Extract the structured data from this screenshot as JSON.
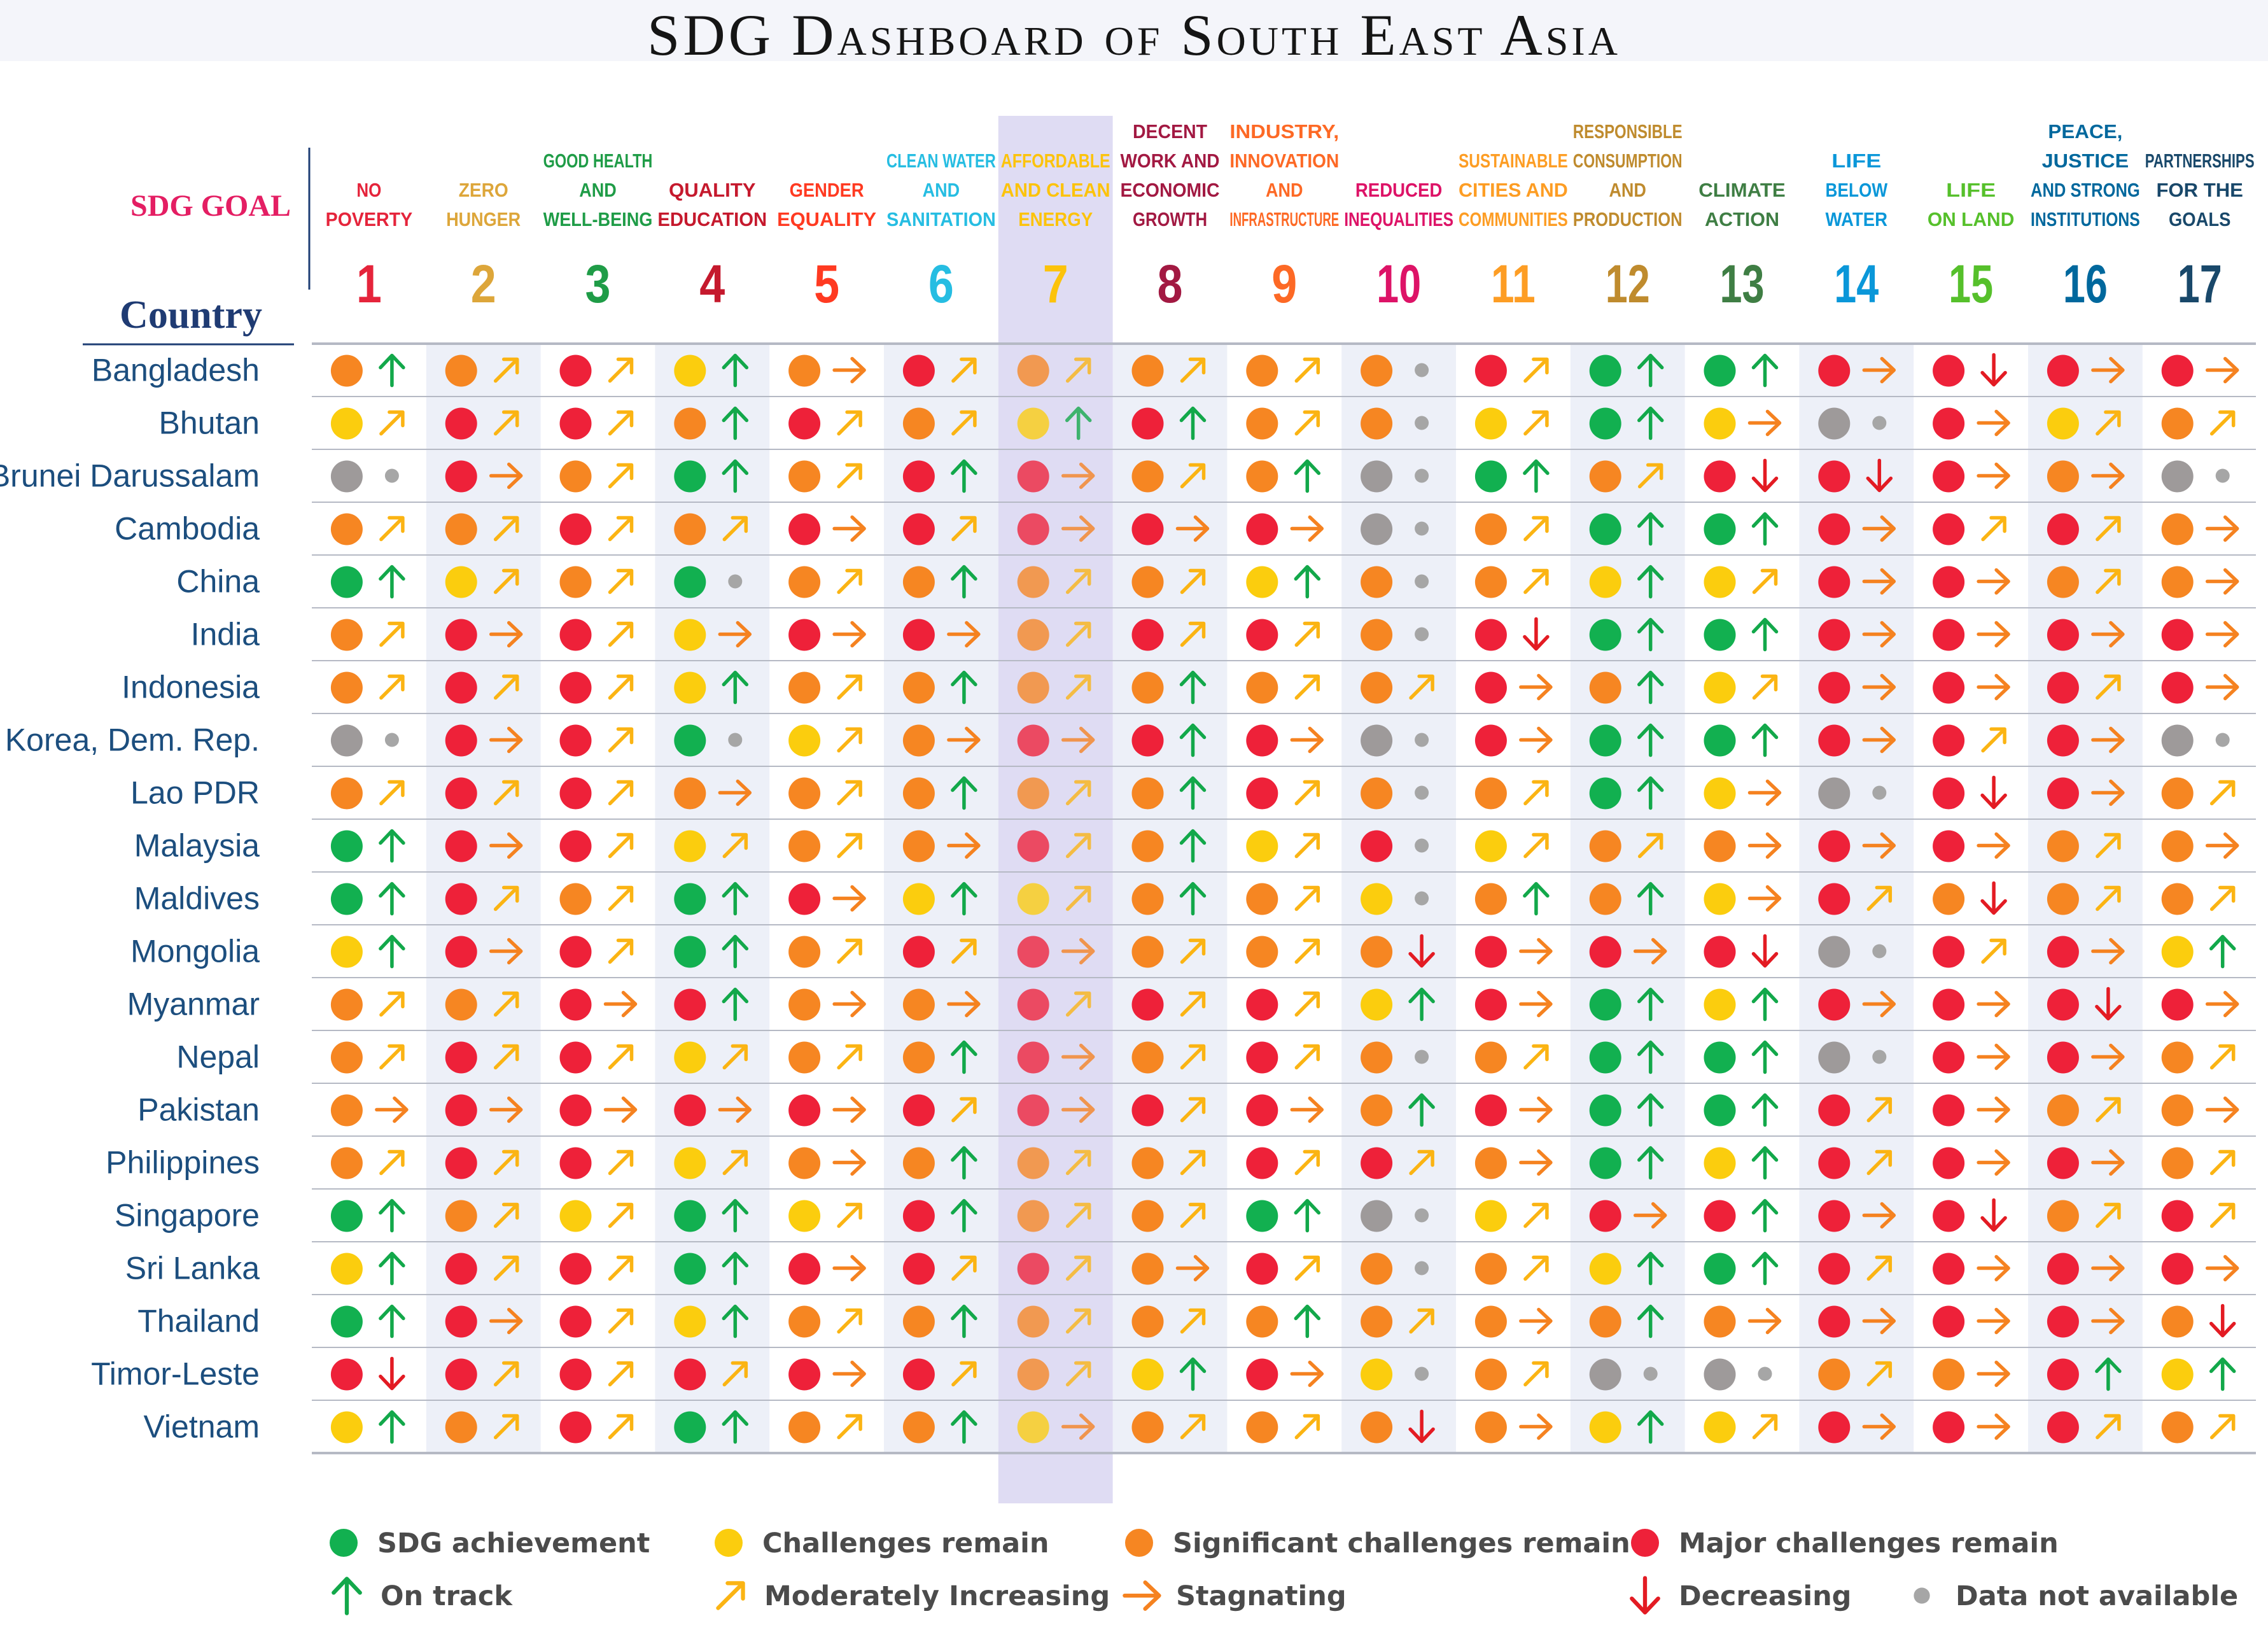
{
  "title": "SDG Dashboard of South East Asia",
  "chart_data": {
    "type": "table",
    "title": "SDG Dashboard of South East Asia",
    "row_header": "Country",
    "column_header": "SDG GOAL",
    "highlighted_goal": 7,
    "goals": [
      {
        "number": "1",
        "lines": [
          "NO",
          "POVERTY"
        ],
        "color": "#e5243b"
      },
      {
        "number": "2",
        "lines": [
          "ZERO",
          "HUNGER"
        ],
        "color": "#dda63a"
      },
      {
        "number": "3",
        "lines": [
          "GOOD HEALTH",
          "AND",
          "WELL-BEING"
        ],
        "color": "#1f9c47"
      },
      {
        "number": "4",
        "lines": [
          "QUALITY",
          "EDUCATION"
        ],
        "color": "#c5192d"
      },
      {
        "number": "5",
        "lines": [
          "GENDER",
          "EQUALITY"
        ],
        "color": "#ff3a21"
      },
      {
        "number": "6",
        "lines": [
          "CLEAN WATER",
          "AND",
          "SANITATION"
        ],
        "color": "#26bde2"
      },
      {
        "number": "7",
        "lines": [
          "AFFORDABLE",
          "AND CLEAN",
          "ENERGY"
        ],
        "color": "#fcc30b"
      },
      {
        "number": "8",
        "lines": [
          "DECENT",
          "WORK AND",
          "ECONOMIC",
          "GROWTH"
        ],
        "color": "#a21942"
      },
      {
        "number": "9",
        "lines": [
          "INDUSTRY,",
          "INNOVATION",
          "AND",
          "INFRASTRUCTURE"
        ],
        "color": "#fd6925"
      },
      {
        "number": "10",
        "lines": [
          "REDUCED",
          "INEQUALITIES"
        ],
        "color": "#dd1367"
      },
      {
        "number": "11",
        "lines": [
          "SUSTAINABLE",
          "CITIES AND",
          "COMMUNITIES"
        ],
        "color": "#fd9d24"
      },
      {
        "number": "12",
        "lines": [
          "RESPONSIBLE",
          "CONSUMPTION",
          "AND",
          "PRODUCTION"
        ],
        "color": "#bf8b2e"
      },
      {
        "number": "13",
        "lines": [
          "CLIMATE",
          "ACTION"
        ],
        "color": "#3f7e44"
      },
      {
        "number": "14",
        "lines": [
          "LIFE",
          "BELOW",
          "WATER"
        ],
        "color": "#0a97d9"
      },
      {
        "number": "15",
        "lines": [
          "LIFE",
          "ON LAND"
        ],
        "color": "#56c02b"
      },
      {
        "number": "16",
        "lines": [
          "PEACE,",
          "JUSTICE",
          "AND STRONG",
          "INSTITUTIONS"
        ],
        "color": "#00689d"
      },
      {
        "number": "17",
        "lines": [
          "PARTNERSHIPS",
          "FOR THE",
          "GOALS"
        ],
        "color": "#19486a"
      }
    ],
    "status_colors": {
      "G": "#12b050",
      "Y": "#fbcd0e",
      "O": "#f68622",
      "R": "#ee2139",
      "N": "#9e9a9a"
    },
    "trend_colors": {
      "up": "#12a84a",
      "mod": "#fbb413",
      "flat": "#f58220",
      "down": "#e31b23",
      "na": "#a6a6a6"
    },
    "countries": [
      {
        "name": "Bangladesh",
        "cells": [
          "O↑",
          "O↗",
          "R↗",
          "Y↑",
          "O→",
          "R↗",
          "O↗",
          "O↗",
          "O↗",
          "O•",
          "R↗",
          "G↑",
          "G↑",
          "R→",
          "R↓",
          "R→",
          "R→"
        ]
      },
      {
        "name": "Bhutan",
        "cells": [
          "Y↗",
          "R↗",
          "R↗",
          "O↑",
          "R↗",
          "O↗",
          "Y↑",
          "R↑",
          "O↗",
          "O•",
          "Y↗",
          "G↑",
          "Y→",
          "N•",
          "R→",
          "Y↗",
          "O↗"
        ]
      },
      {
        "name": "Brunei Darussalam",
        "cells": [
          "N•",
          "R→",
          "O↗",
          "G↑",
          "O↗",
          "R↑",
          "R→",
          "O↗",
          "O↑",
          "N•",
          "G↑",
          "O↗",
          "R↓",
          "R↓",
          "R→",
          "O→",
          "N•"
        ]
      },
      {
        "name": "Cambodia",
        "cells": [
          "O↗",
          "O↗",
          "R↗",
          "O↗",
          "R→",
          "R↗",
          "R→",
          "R→",
          "R→",
          "N•",
          "O↗",
          "G↑",
          "G↑",
          "R→",
          "R↗",
          "R↗",
          "O→"
        ]
      },
      {
        "name": "China",
        "cells": [
          "G↑",
          "Y↗",
          "O↗",
          "G•",
          "O↗",
          "O↑",
          "O↗",
          "O↗",
          "Y↑",
          "O•",
          "O↗",
          "Y↑",
          "Y↗",
          "R→",
          "R→",
          "O↗",
          "O→"
        ]
      },
      {
        "name": "India",
        "cells": [
          "O↗",
          "R→",
          "R↗",
          "Y→",
          "R→",
          "R→",
          "O↗",
          "R↗",
          "R↗",
          "O•",
          "R↓",
          "G↑",
          "G↑",
          "R→",
          "R→",
          "R→",
          "R→"
        ]
      },
      {
        "name": "Indonesia",
        "cells": [
          "O↗",
          "R↗",
          "R↗",
          "Y↑",
          "O↗",
          "O↑",
          "O↗",
          "O↑",
          "O↗",
          "O↗",
          "R→",
          "O↑",
          "Y↗",
          "R→",
          "R→",
          "R↗",
          "R→"
        ]
      },
      {
        "name": "Korea, Dem. Rep.",
        "cells": [
          "N•",
          "R→",
          "R↗",
          "G•",
          "Y↗",
          "O→",
          "R→",
          "R↑",
          "R→",
          "N•",
          "R→",
          "G↑",
          "G↑",
          "R→",
          "R↗",
          "R→",
          "N•"
        ]
      },
      {
        "name": "Lao PDR",
        "cells": [
          "O↗",
          "R↗",
          "R↗",
          "O→",
          "O↗",
          "O↑",
          "O↗",
          "O↑",
          "R↗",
          "O•",
          "O↗",
          "G↑",
          "Y→",
          "N•",
          "R↓",
          "R→",
          "O↗"
        ]
      },
      {
        "name": "Malaysia",
        "cells": [
          "G↑",
          "R→",
          "R↗",
          "Y↗",
          "O↗",
          "O→",
          "R↗",
          "O↑",
          "Y↗",
          "R•",
          "Y↗",
          "O↗",
          "O→",
          "R→",
          "R→",
          "O↗",
          "O→"
        ]
      },
      {
        "name": "Maldives",
        "cells": [
          "G↑",
          "R↗",
          "O↗",
          "G↑",
          "R→",
          "Y↑",
          "Y↗",
          "O↑",
          "O↗",
          "Y•",
          "O↑",
          "O↑",
          "Y→",
          "R↗",
          "O↓",
          "O↗",
          "O↗"
        ]
      },
      {
        "name": "Mongolia",
        "cells": [
          "Y↑",
          "R→",
          "R↗",
          "G↑",
          "O↗",
          "R↗",
          "R→",
          "O↗",
          "O↗",
          "O↓",
          "R→",
          "R→",
          "R↓",
          "N•",
          "R↗",
          "R→",
          "Y↑"
        ]
      },
      {
        "name": "Myanmar",
        "cells": [
          "O↗",
          "O↗",
          "R→",
          "R↑",
          "O→",
          "O→",
          "R↗",
          "R↗",
          "R↗",
          "Y↑",
          "R→",
          "G↑",
          "Y↑",
          "R→",
          "R→",
          "R↓",
          "R→"
        ]
      },
      {
        "name": "Nepal",
        "cells": [
          "O↗",
          "R↗",
          "R↗",
          "Y↗",
          "O↗",
          "O↑",
          "R→",
          "O↗",
          "R↗",
          "O•",
          "O↗",
          "G↑",
          "G↑",
          "N•",
          "R→",
          "R→",
          "O↗"
        ]
      },
      {
        "name": "Pakistan",
        "cells": [
          "O→",
          "R→",
          "R→",
          "R→",
          "R→",
          "R↗",
          "R→",
          "R↗",
          "R→",
          "O↑",
          "R→",
          "G↑",
          "G↑",
          "R↗",
          "R→",
          "O↗",
          "O→"
        ]
      },
      {
        "name": "Philippines",
        "cells": [
          "O↗",
          "R↗",
          "R↗",
          "Y↗",
          "O→",
          "O↑",
          "O↗",
          "O↗",
          "R↗",
          "R↗",
          "O→",
          "G↑",
          "Y↑",
          "R↗",
          "R→",
          "R→",
          "O↗"
        ]
      },
      {
        "name": "Singapore",
        "cells": [
          "G↑",
          "O↗",
          "Y↗",
          "G↑",
          "Y↗",
          "R↑",
          "O↗",
          "O↗",
          "G↑",
          "N•",
          "Y↗",
          "R→",
          "R↑",
          "R→",
          "R↓",
          "O↗",
          "R↗"
        ]
      },
      {
        "name": "Sri Lanka",
        "cells": [
          "Y↑",
          "R↗",
          "R↗",
          "G↑",
          "R→",
          "R↗",
          "R↗",
          "O→",
          "R↗",
          "O•",
          "O↗",
          "Y↑",
          "G↑",
          "R↗",
          "R→",
          "R→",
          "R→"
        ]
      },
      {
        "name": "Thailand",
        "cells": [
          "G↑",
          "R→",
          "R↗",
          "Y↑",
          "O↗",
          "O↑",
          "O↗",
          "O↗",
          "O↑",
          "O↗",
          "O→",
          "O↑",
          "O→",
          "R→",
          "R→",
          "R→",
          "O↓"
        ]
      },
      {
        "name": "Timor-Leste",
        "cells": [
          "R↓",
          "R↗",
          "R↗",
          "R↗",
          "R→",
          "R↗",
          "O↗",
          "Y↑",
          "R→",
          "Y•",
          "O↗",
          "N•",
          "N•",
          "O↗",
          "O→",
          "R↑",
          "Y↑"
        ]
      },
      {
        "name": "Vietnam",
        "cells": [
          "Y↑",
          "O↗",
          "R↗",
          "G↑",
          "O↗",
          "O↑",
          "Y→",
          "O↗",
          "O↗",
          "O↓",
          "O→",
          "Y↑",
          "Y↗",
          "R→",
          "R→",
          "R↗",
          "O↗"
        ]
      }
    ],
    "legend": [
      {
        "kind": "dot",
        "color": "#12b050",
        "label": "SDG achievement"
      },
      {
        "kind": "dot",
        "color": "#fbcd0e",
        "label": "Challenges remain"
      },
      {
        "kind": "dot",
        "color": "#f68622",
        "label": "Significant challenges remain"
      },
      {
        "kind": "dot",
        "color": "#ee2139",
        "label": "Major challenges remain"
      },
      {
        "kind": "up",
        "color": "#12a84a",
        "label": "On track"
      },
      {
        "kind": "mod",
        "color": "#fbb413",
        "label": "Moderately Increasing"
      },
      {
        "kind": "flat",
        "color": "#f58220",
        "label": "Stagnating"
      },
      {
        "kind": "down",
        "color": "#e31b23",
        "label": "Decreasing"
      },
      {
        "kind": "na",
        "color": "#9e9a9a",
        "label": "Data not available"
      }
    ]
  }
}
